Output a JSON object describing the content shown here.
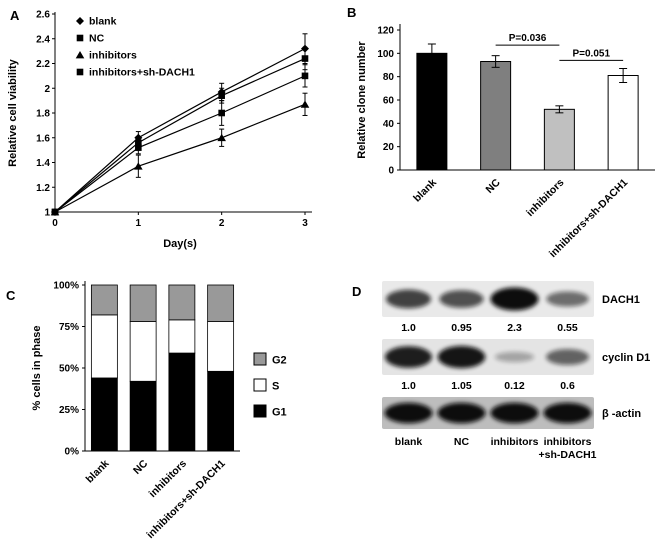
{
  "figure": {
    "background": "#ffffff"
  },
  "chart_data": [
    {
      "panel": "A",
      "type": "line",
      "xlabel": "Day(s)",
      "ylabel": "Relative cell viability",
      "x": [
        0,
        1,
        2,
        3
      ],
      "xticks": [
        "0",
        "1",
        "2",
        "3"
      ],
      "yticks": [
        "1",
        "1.2",
        "1.4",
        "1.6",
        "1.8",
        "2",
        "2.2",
        "2.4",
        "2.6"
      ],
      "ylim": [
        1,
        2.6
      ],
      "legend_position": "top-left-inside",
      "series": [
        {
          "name": "blank",
          "marker": "diamond",
          "values": [
            1,
            1.6,
            1.97,
            2.32
          ],
          "errors": [
            0,
            0.05,
            0.07,
            0.12
          ]
        },
        {
          "name": "NC",
          "marker": "square",
          "values": [
            1,
            1.56,
            1.94,
            2.24
          ],
          "errors": [
            0,
            0.05,
            0.06,
            0.09
          ]
        },
        {
          "name": "inhibitors",
          "marker": "triangle",
          "values": [
            1,
            1.37,
            1.6,
            1.87
          ],
          "errors": [
            0,
            0.09,
            0.07,
            0.09
          ]
        },
        {
          "name": "inhibitors+sh-DACH1",
          "marker": "square",
          "values": [
            1,
            1.52,
            1.8,
            2.1
          ],
          "errors": [
            0,
            0.05,
            0.1,
            0.09
          ]
        }
      ]
    },
    {
      "panel": "B",
      "type": "bar",
      "ylabel": "Relative clone number",
      "ylim": [
        0,
        120
      ],
      "yticks": [
        0,
        20,
        40,
        60,
        80,
        100,
        120
      ],
      "categories": [
        "blank",
        "NC",
        "inhibitors",
        "inhibitors+sh-DACH1"
      ],
      "values": [
        100,
        93,
        52,
        81
      ],
      "errors": [
        8,
        5,
        3,
        6
      ],
      "colors": [
        "#000000",
        "#7f7f7f",
        "#c0c0c0",
        "#ffffff"
      ],
      "annotations": [
        {
          "label": "P=0.036",
          "from": 1,
          "to": 2,
          "y": 107
        },
        {
          "label": "P=0.051",
          "from": 2,
          "to": 3,
          "y": 94
        }
      ]
    },
    {
      "panel": "C",
      "type": "stacked-bar",
      "ylabel": "% cells in phase",
      "yticks": [
        "0%",
        "25%",
        "50%",
        "75%",
        "100%"
      ],
      "categories": [
        "blank",
        "NC",
        "inhibitors",
        "inhibitors+sh-DACH1"
      ],
      "series": [
        {
          "name": "G1",
          "color": "#000000",
          "values": [
            44,
            42,
            59,
            48
          ]
        },
        {
          "name": "S",
          "color": "#ffffff",
          "values": [
            38,
            36,
            20,
            30
          ]
        },
        {
          "name": "G2",
          "color": "#999999",
          "values": [
            18,
            22,
            21,
            22
          ]
        }
      ],
      "legend_order": [
        "G2",
        "S",
        "G1"
      ],
      "legend_position": "right"
    },
    {
      "panel": "D",
      "type": "western-blot",
      "lanes": [
        "blank",
        "NC",
        "inhibitors",
        "inhibitors\n+sh-DACH1"
      ],
      "rows": [
        {
          "protein": "DACH1",
          "quantification": [
            "1.0",
            "0.95",
            "2.3",
            "0.55"
          ],
          "band_intensities": [
            0.7,
            0.62,
            1.0,
            0.45
          ],
          "background": "#e9e9e9"
        },
        {
          "protein": "cyclin D1",
          "quantification": [
            "1.0",
            "1.05",
            "0.12",
            "0.6"
          ],
          "band_intensities": [
            0.9,
            0.95,
            0.12,
            0.5
          ],
          "background": "#e4e4e4"
        },
        {
          "protein": "β -actin",
          "quantification": null,
          "band_intensities": [
            1.0,
            1.0,
            1.0,
            1.0
          ],
          "background": "#bdbdbd"
        }
      ]
    }
  ]
}
